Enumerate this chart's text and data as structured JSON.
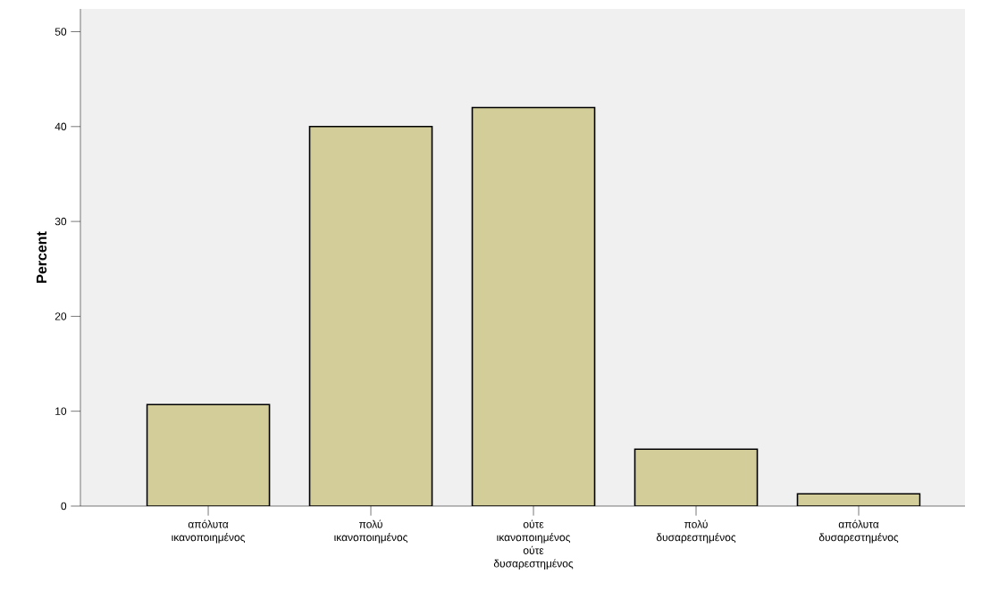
{
  "chart_data": {
    "type": "bar",
    "ylabel": "Percent",
    "categories": [
      "απόλυτα ικανοποιημένος",
      "πολύ ικανοποιημένος",
      "ούτε ικανοποιημένος ούτε δυσαρεστημένος",
      "πολύ δυσαρεστημένος",
      "απόλυτα δυσαρεστημένος"
    ],
    "values": [
      10.7,
      40,
      42,
      6,
      1.3
    ],
    "color": "#d3ce99",
    "ylim": [
      0,
      52.4
    ],
    "yticks": [
      0,
      10,
      20,
      30,
      40,
      50
    ],
    "grid": false
  }
}
